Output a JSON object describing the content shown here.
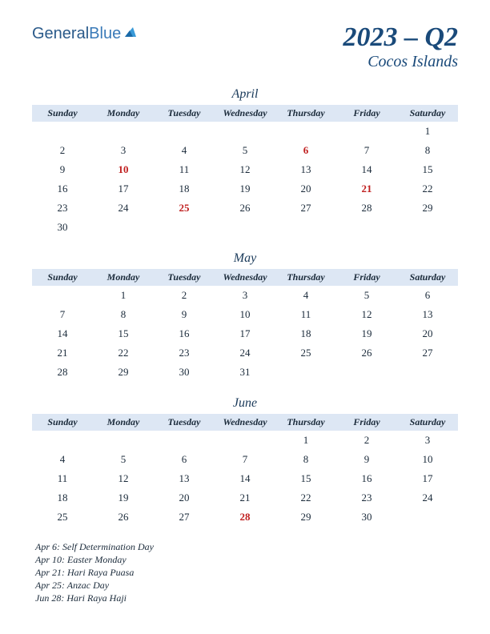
{
  "logo": {
    "text1": "General",
    "text2": "Blue"
  },
  "title": {
    "year_quarter": "2023 – Q2",
    "region": "Cocos Islands"
  },
  "day_headers": [
    "Sunday",
    "Monday",
    "Tuesday",
    "Wednesday",
    "Thursday",
    "Friday",
    "Saturday"
  ],
  "colors": {
    "header_bg": "#dde7f4",
    "text": "#1a2a3a",
    "title": "#1a4a7a",
    "holiday": "#c02020"
  },
  "months": [
    {
      "name": "April",
      "weeks": [
        [
          "",
          "",
          "",
          "",
          "",
          "",
          "1"
        ],
        [
          "2",
          "3",
          "4",
          "5",
          "6",
          "7",
          "8"
        ],
        [
          "9",
          "10",
          "11",
          "12",
          "13",
          "14",
          "15"
        ],
        [
          "16",
          "17",
          "18",
          "19",
          "20",
          "21",
          "22"
        ],
        [
          "23",
          "24",
          "25",
          "26",
          "27",
          "28",
          "29"
        ],
        [
          "30",
          "",
          "",
          "",
          "",
          "",
          ""
        ]
      ],
      "holidays_idx": [
        [
          1,
          4
        ],
        [
          2,
          1
        ],
        [
          3,
          5
        ],
        [
          4,
          2
        ]
      ]
    },
    {
      "name": "May",
      "weeks": [
        [
          "",
          "1",
          "2",
          "3",
          "4",
          "5",
          "6"
        ],
        [
          "7",
          "8",
          "9",
          "10",
          "11",
          "12",
          "13"
        ],
        [
          "14",
          "15",
          "16",
          "17",
          "18",
          "19",
          "20"
        ],
        [
          "21",
          "22",
          "23",
          "24",
          "25",
          "26",
          "27"
        ],
        [
          "28",
          "29",
          "30",
          "31",
          "",
          "",
          ""
        ]
      ],
      "holidays_idx": []
    },
    {
      "name": "June",
      "weeks": [
        [
          "",
          "",
          "",
          "",
          "1",
          "2",
          "3"
        ],
        [
          "4",
          "5",
          "6",
          "7",
          "8",
          "9",
          "10"
        ],
        [
          "11",
          "12",
          "13",
          "14",
          "15",
          "16",
          "17"
        ],
        [
          "18",
          "19",
          "20",
          "21",
          "22",
          "23",
          "24"
        ],
        [
          "25",
          "26",
          "27",
          "28",
          "29",
          "30",
          ""
        ]
      ],
      "holidays_idx": [
        [
          4,
          3
        ]
      ]
    }
  ],
  "holiday_list": [
    "Apr 6: Self Determination Day",
    "Apr 10: Easter Monday",
    "Apr 21: Hari Raya Puasa",
    "Apr 25: Anzac Day",
    "Jun 28: Hari Raya Haji"
  ]
}
